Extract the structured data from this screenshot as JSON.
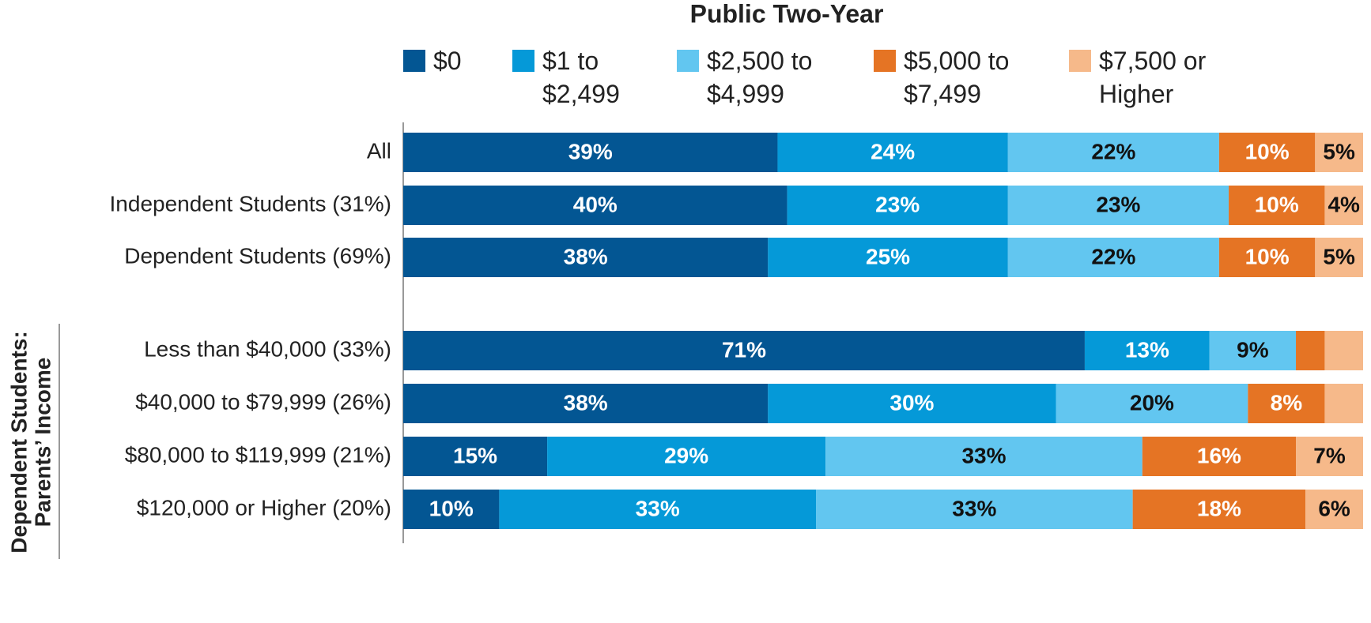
{
  "chart_data": {
    "type": "stacked-bar-horizontal",
    "title": "Public Two-Year",
    "group_label": [
      "Dependent Students:",
      "Parents’ Income"
    ],
    "categories": [
      "All",
      "Independent Students (31%)",
      "Dependent Students (69%)",
      "Less than $40,000 (33%)",
      "$40,000 to $79,999 (26%)",
      "$80,000 to $119,999 (21%)",
      "$120,000 or Higher (20%)"
    ],
    "xlim": [
      0,
      100
    ],
    "series": [
      {
        "name": "$0",
        "color": "#035693",
        "values": [
          39,
          40,
          38,
          71,
          38,
          15,
          10
        ],
        "value_labels": [
          "39%",
          "40%",
          "38%",
          "71%",
          "38%",
          "15%",
          "10%"
        ]
      },
      {
        "name": "$1 to $2,499",
        "color": "#0599d8",
        "values": [
          24,
          23,
          25,
          13,
          30,
          29,
          33
        ],
        "value_labels": [
          "24%",
          "23%",
          "25%",
          "13%",
          "30%",
          "29%",
          "33%"
        ]
      },
      {
        "name": "$2,500 to $4,999",
        "color": "#62c6f0",
        "values": [
          22,
          23,
          22,
          9,
          20,
          33,
          33
        ],
        "value_labels": [
          "22%",
          "23%",
          "22%",
          "9%",
          "20%",
          "33%",
          "33%"
        ]
      },
      {
        "name": "$5,000 to $7,499",
        "color": "#e57424",
        "values": [
          10,
          10,
          10,
          3,
          8,
          16,
          18
        ],
        "value_labels": [
          "10%",
          "10%",
          "10%",
          null,
          "8%",
          "16%",
          "18%"
        ]
      },
      {
        "name": "$7,500 or Higher",
        "color": "#f6b98a",
        "values": [
          5,
          4,
          5,
          4,
          4,
          7,
          6
        ],
        "value_labels": [
          "5%",
          "4%",
          "5%",
          null,
          null,
          "7%",
          "6%"
        ]
      }
    ]
  }
}
